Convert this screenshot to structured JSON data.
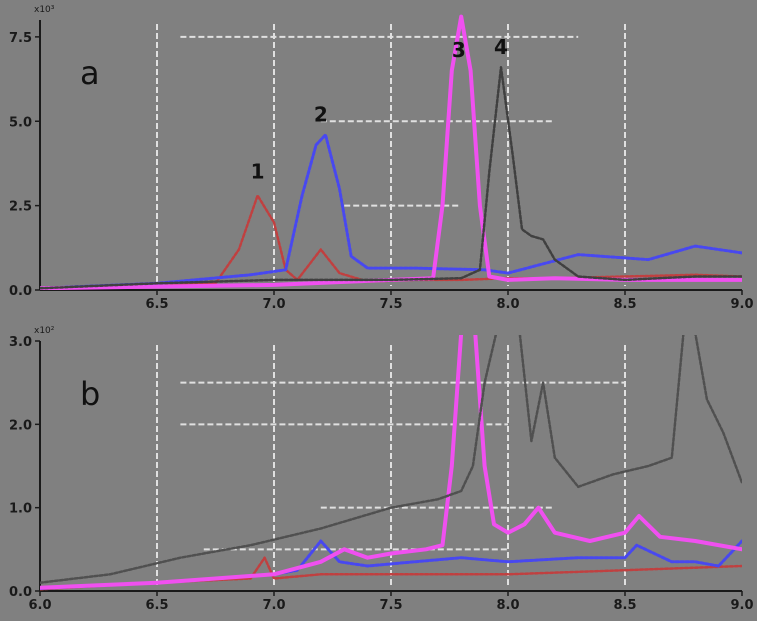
{
  "colors": {
    "background": "#808080",
    "grid": "#e0e0e0",
    "axis": "#1a1a1a",
    "tick_text": "#1a1a1a",
    "peak_label": "#111111"
  },
  "chart_data": [
    {
      "id": "a",
      "type": "line",
      "panel_label": "a",
      "axis_multiplier": "x10³",
      "xlim": [
        6.0,
        9.0
      ],
      "ylim": [
        0,
        8.0
      ],
      "xticks": [
        6.5,
        7.0,
        7.5,
        8.0,
        8.5,
        9.0
      ],
      "xtick_labels": [
        "6.5",
        "7.0",
        "7.5",
        "8.0",
        "8.5",
        "9.0"
      ],
      "yticks": [
        0.0,
        2.5,
        5.0,
        7.5
      ],
      "ytick_labels": [
        "0.0",
        "2.5",
        "5.0",
        "7.5"
      ],
      "peak_labels": [
        {
          "text": "1",
          "x": 6.93,
          "y": 3.3
        },
        {
          "text": "2",
          "x": 7.2,
          "y": 5.0
        },
        {
          "text": "3",
          "x": 7.79,
          "y": 6.9
        },
        {
          "text": "4",
          "x": 7.97,
          "y": 7.0
        }
      ],
      "series": [
        {
          "color": "#c04040",
          "width": 2.5,
          "dash": "3,2",
          "x": [
            6.0,
            6.5,
            6.75,
            6.85,
            6.93,
            7.0,
            7.05,
            7.1,
            7.2,
            7.28,
            7.4,
            7.6,
            7.8,
            8.0,
            8.2,
            8.5,
            8.8,
            9.0
          ],
          "y": [
            0.05,
            0.12,
            0.2,
            1.2,
            2.8,
            2.0,
            0.6,
            0.3,
            1.2,
            0.5,
            0.25,
            0.3,
            0.3,
            0.35,
            0.35,
            0.4,
            0.45,
            0.4
          ]
        },
        {
          "color": "#4848f0",
          "width": 3,
          "dash": "3,2",
          "x": [
            6.0,
            6.5,
            6.9,
            7.05,
            7.12,
            7.18,
            7.22,
            7.28,
            7.33,
            7.4,
            7.6,
            7.9,
            8.0,
            8.3,
            8.6,
            8.8,
            9.0
          ],
          "y": [
            0.05,
            0.2,
            0.45,
            0.6,
            2.8,
            4.3,
            4.6,
            3.0,
            1.0,
            0.65,
            0.65,
            0.6,
            0.5,
            1.05,
            0.9,
            1.3,
            1.1
          ]
        },
        {
          "color": "#f050f0",
          "width": 4,
          "dash": "",
          "x": [
            6.0,
            6.5,
            7.0,
            7.5,
            7.68,
            7.72,
            7.76,
            7.8,
            7.84,
            7.88,
            7.92,
            8.0,
            8.2,
            8.5,
            8.8,
            9.0
          ],
          "y": [
            0.05,
            0.1,
            0.15,
            0.3,
            0.35,
            2.5,
            6.5,
            8.1,
            6.5,
            2.5,
            0.4,
            0.3,
            0.35,
            0.3,
            0.3,
            0.3
          ]
        },
        {
          "color": "#404040",
          "width": 2.5,
          "dash": "3,2",
          "x": [
            6.0,
            6.5,
            7.0,
            7.5,
            7.8,
            7.88,
            7.92,
            7.97,
            8.02,
            8.06,
            8.1,
            8.15,
            8.2,
            8.3,
            8.5,
            8.8,
            9.0
          ],
          "y": [
            0.05,
            0.2,
            0.3,
            0.3,
            0.35,
            0.6,
            3.5,
            6.6,
            4.0,
            1.8,
            1.6,
            1.5,
            0.9,
            0.4,
            0.3,
            0.4,
            0.4
          ]
        }
      ]
    },
    {
      "id": "b",
      "type": "line",
      "panel_label": "b",
      "axis_multiplier": "x10²",
      "xlim": [
        6.0,
        9.0
      ],
      "ylim": [
        0,
        3.0
      ],
      "xticks": [
        6.0,
        6.5,
        7.0,
        7.5,
        8.0,
        8.5,
        9.0
      ],
      "xtick_labels": [
        "6.0",
        "6.5",
        "7.0",
        "7.5",
        "8.0",
        "8.5",
        "9.0"
      ],
      "yticks": [
        0.0,
        1.0,
        2.0,
        3.0
      ],
      "ytick_labels": [
        "0.0",
        "1.0",
        "2.0",
        "3.0"
      ],
      "peak_labels": [],
      "series": [
        {
          "color": "#c04040",
          "width": 2.5,
          "dash": "3,2",
          "x": [
            6.0,
            6.5,
            6.9,
            6.96,
            7.0,
            7.2,
            7.5,
            8.0,
            8.5,
            9.0
          ],
          "y": [
            0.02,
            0.1,
            0.15,
            0.4,
            0.15,
            0.2,
            0.2,
            0.2,
            0.25,
            0.3
          ]
        },
        {
          "color": "#4848f0",
          "width": 3,
          "dash": "3,2",
          "x": [
            6.0,
            6.5,
            7.0,
            7.1,
            7.2,
            7.28,
            7.4,
            7.6,
            7.8,
            8.0,
            8.3,
            8.5,
            8.55,
            8.7,
            8.8,
            8.9,
            9.0
          ],
          "y": [
            0.03,
            0.1,
            0.2,
            0.25,
            0.6,
            0.35,
            0.3,
            0.35,
            0.4,
            0.35,
            0.4,
            0.4,
            0.55,
            0.35,
            0.35,
            0.3,
            0.6
          ]
        },
        {
          "color": "#f050f0",
          "width": 4,
          "dash": "",
          "x": [
            6.0,
            6.5,
            7.0,
            7.2,
            7.3,
            7.4,
            7.5,
            7.65,
            7.72,
            7.76,
            7.8,
            7.86,
            7.9,
            7.94,
            8.0,
            8.07,
            8.13,
            8.2,
            8.35,
            8.5,
            8.56,
            8.65,
            8.8,
            9.0
          ],
          "y": [
            0.04,
            0.1,
            0.2,
            0.35,
            0.5,
            0.4,
            0.45,
            0.5,
            0.55,
            1.5,
            3.1,
            3.1,
            1.5,
            0.8,
            0.7,
            0.8,
            1.0,
            0.7,
            0.6,
            0.7,
            0.9,
            0.65,
            0.6,
            0.5
          ]
        },
        {
          "color": "#505050",
          "width": 2.5,
          "dash": "3,2",
          "x": [
            6.0,
            6.3,
            6.6,
            6.9,
            7.2,
            7.5,
            7.6,
            7.7,
            7.8,
            7.85,
            7.9,
            7.95,
            8.0,
            8.05,
            8.1,
            8.15,
            8.2,
            8.3,
            8.45,
            8.6,
            8.7,
            8.75,
            8.8,
            8.85,
            8.92,
            9.0
          ],
          "y": [
            0.1,
            0.2,
            0.4,
            0.55,
            0.75,
            1.0,
            1.05,
            1.1,
            1.2,
            1.5,
            2.5,
            3.1,
            3.1,
            3.1,
            1.8,
            2.5,
            1.6,
            1.25,
            1.4,
            1.5,
            1.6,
            3.1,
            3.1,
            2.3,
            1.9,
            1.3
          ]
        }
      ]
    }
  ]
}
